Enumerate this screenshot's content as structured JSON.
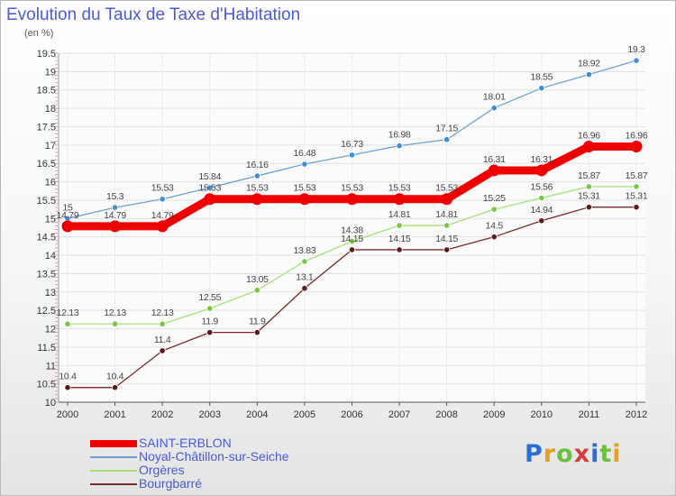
{
  "chart_data": {
    "type": "line",
    "title": "Evolution du Taux de Taxe d'Habitation",
    "subtitle": "(en %)",
    "categories": [
      "2000",
      "2001",
      "2002",
      "2003",
      "2004",
      "2005",
      "2006",
      "2007",
      "2008",
      "2009",
      "2010",
      "2011",
      "2012"
    ],
    "ylim": [
      10,
      19.5
    ],
    "yticks": [
      "10",
      "10.5",
      "11",
      "11.5",
      "12",
      "12.5",
      "13",
      "13.5",
      "14",
      "14.5",
      "15",
      "15.5",
      "16",
      "16.5",
      "17",
      "17.5",
      "18",
      "18.5",
      "19",
      "19.5"
    ],
    "grid": true,
    "legend_position": "bottom-left",
    "series": [
      {
        "name": "SAINT-ERBLON",
        "color": "#ee0000",
        "values": [
          14.79,
          14.79,
          14.79,
          15.53,
          15.53,
          15.53,
          15.53,
          15.53,
          15.53,
          16.31,
          16.31,
          16.96,
          16.96
        ],
        "labels": [
          "14.79",
          "14.79",
          "14.79",
          "15.53",
          "15.53",
          "15.53",
          "15.53",
          "15.53",
          "15.53",
          "16.31",
          "16.31",
          "16.96",
          "16.96"
        ]
      },
      {
        "name": "Noyal-Châtillon-sur-Seiche",
        "color": "#6ea0d6",
        "marker": "#3f8fd8",
        "values": [
          15,
          15.3,
          15.53,
          15.84,
          16.16,
          16.48,
          16.73,
          16.98,
          17.15,
          18.01,
          18.55,
          18.92,
          19.3
        ],
        "labels": [
          "15",
          "15.3",
          "15.53",
          "15.84",
          "16.16",
          "16.48",
          "16.73",
          "16.98",
          "17.15",
          "18.01",
          "18.55",
          "18.92",
          "19.3"
        ]
      },
      {
        "name": "Orgères",
        "color": "#a6e07a",
        "marker": "#79c843",
        "values": [
          12.13,
          12.13,
          12.13,
          12.55,
          13.05,
          13.83,
          14.38,
          14.81,
          14.81,
          15.25,
          15.56,
          15.87,
          15.87
        ],
        "labels": [
          "12.13",
          "12.13",
          "12.13",
          "12.55",
          "13.05",
          "13.83",
          "14.38",
          "14.81",
          "14.81",
          "15.25",
          "15.56",
          "15.87",
          "15.87"
        ]
      },
      {
        "name": "Bourgbarré",
        "color": "#7a2a2a",
        "marker": "#5a1a1a",
        "values": [
          10.4,
          10.4,
          11.4,
          11.9,
          11.9,
          13.1,
          14.15,
          14.15,
          14.15,
          14.5,
          14.94,
          15.31,
          15.31
        ],
        "labels": [
          "10.4",
          "10.4",
          "11.4",
          "11.9",
          "11.9",
          "13.1",
          "14.15",
          "14.15",
          "14.15",
          "14.5",
          "14.94",
          "15.31",
          "15.31"
        ]
      }
    ]
  },
  "brand": {
    "text": "Proxiti",
    "colors": [
      "#2a6fd6",
      "#e8a020",
      "#6ac040",
      "#d04040",
      "#2a6fd6",
      "#6ac040",
      "#e8a020"
    ]
  }
}
